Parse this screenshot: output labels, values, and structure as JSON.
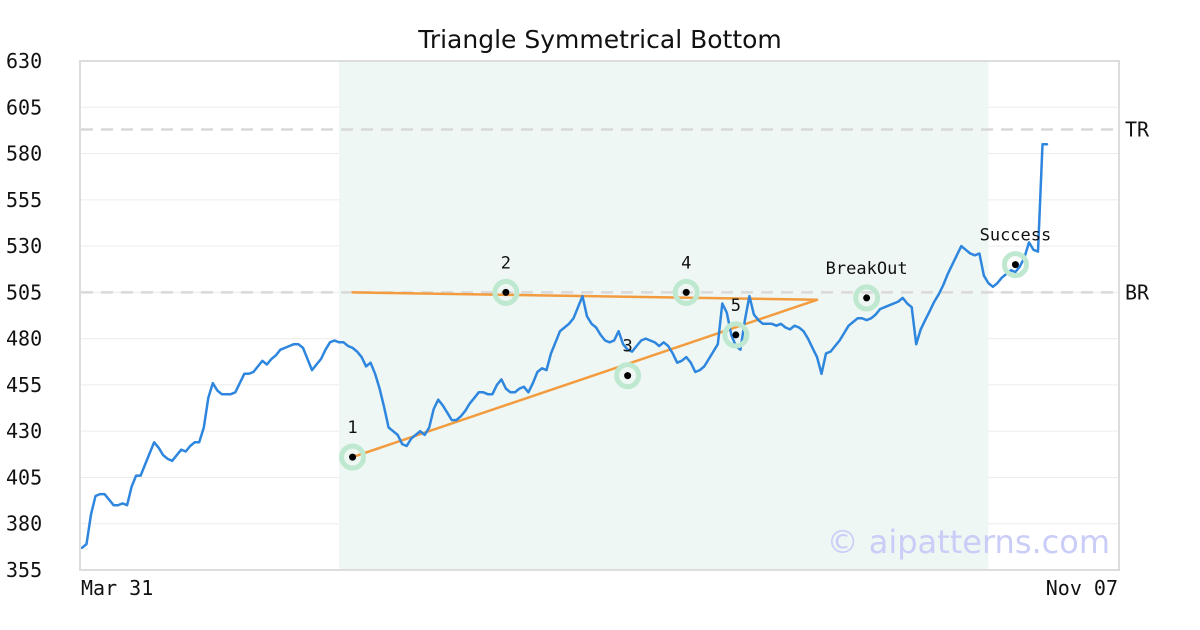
{
  "chart_data": {
    "type": "line",
    "title": "Triangle Symmetrical Bottom",
    "xlabel": "",
    "ylabel": "",
    "ylim": [
      355,
      630
    ],
    "y_ticks": [
      630,
      605,
      580,
      555,
      530,
      505,
      480,
      455,
      430,
      405,
      380,
      355
    ],
    "x_tick_labels": [
      "Mar 31",
      "Nov 07"
    ],
    "grid": "horizontal",
    "pattern_region_index": [
      57,
      201
    ],
    "series": [
      {
        "color": "#2e86de",
        "values": [
          367,
          369,
          385,
          395,
          396,
          396,
          393,
          390,
          390,
          391,
          390,
          400,
          406,
          406,
          412,
          418,
          424,
          421,
          417,
          415,
          414,
          417,
          420,
          419,
          422,
          424,
          424,
          432,
          448,
          456,
          452,
          450,
          450,
          450,
          451,
          456,
          461,
          461,
          462,
          465,
          468,
          466,
          469,
          471,
          474,
          475,
          476,
          477,
          477,
          475,
          469,
          463,
          466,
          469,
          474,
          478,
          479,
          478,
          478,
          476,
          475,
          473,
          470,
          465,
          467,
          461,
          453,
          443,
          432,
          430,
          428,
          423,
          422,
          426,
          428,
          430,
          428,
          432,
          442,
          447,
          444,
          440,
          436,
          436,
          438,
          441,
          445,
          448,
          451,
          451,
          450,
          450,
          455,
          458,
          453,
          451,
          451,
          453,
          454,
          451,
          456,
          462,
          464,
          463,
          472,
          478,
          484,
          486,
          488,
          491,
          497,
          503,
          492,
          488,
          486,
          482,
          479,
          478,
          479,
          484,
          477,
          474,
          473,
          476,
          479,
          480,
          479,
          478,
          476,
          478,
          476,
          472,
          467,
          468,
          470,
          467,
          462,
          463,
          465,
          469,
          473,
          477,
          499,
          494,
          482,
          476,
          474,
          490,
          503,
          493,
          490,
          488,
          488,
          488,
          487,
          488,
          486,
          485,
          487,
          486,
          484,
          480,
          475,
          470,
          461,
          472,
          473,
          476,
          479,
          483,
          487,
          489,
          491,
          491,
          490,
          491,
          493,
          496,
          497,
          498,
          499,
          500,
          502,
          499,
          497,
          477,
          485,
          490,
          495,
          500,
          504,
          509,
          515,
          520,
          525,
          530,
          528,
          526,
          525,
          526,
          514,
          510,
          508,
          510,
          513,
          515,
          517,
          516,
          519,
          524,
          532,
          528,
          527,
          585,
          585
        ]
      }
    ],
    "reference_lines": [
      {
        "label": "TR",
        "value": 593
      },
      {
        "label": "BR",
        "value": 505
      }
    ],
    "trend_lines": [
      {
        "color": "#f39c3f",
        "from": [
          60,
          505
        ],
        "to": [
          163,
          501
        ]
      },
      {
        "color": "#f39c3f",
        "from": [
          60,
          416
        ],
        "to": [
          163,
          501
        ]
      }
    ],
    "points": [
      {
        "label": "1",
        "index": 60,
        "value": 416
      },
      {
        "label": "2",
        "index": 94,
        "value": 505
      },
      {
        "label": "3",
        "index": 121,
        "value": 460
      },
      {
        "label": "4",
        "index": 134,
        "value": 505
      },
      {
        "label": "5",
        "index": 145,
        "value": 482
      },
      {
        "label": "BreakOut",
        "index": 174,
        "value": 502
      },
      {
        "label": "Success",
        "index": 207,
        "value": 520
      }
    ],
    "watermark": "© aipatterns.com"
  }
}
